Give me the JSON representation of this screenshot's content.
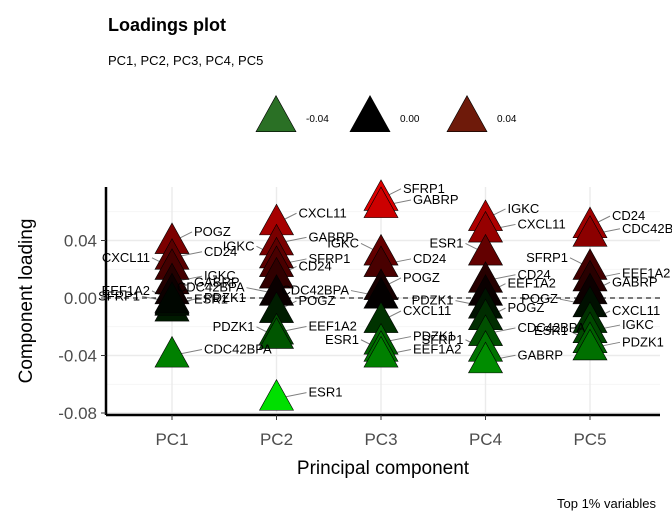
{
  "chart_data": {
    "type": "scatter",
    "title": "Loadings plot",
    "subtitle": "PC1, PC2, PC3, PC4, PC5",
    "xlabel": "Principal component",
    "ylabel": "Component loading",
    "caption": "Top 1% variables",
    "categories": [
      "PC1",
      "PC2",
      "PC3",
      "PC4",
      "PC5"
    ],
    "ylim": [
      -0.08,
      0.08
    ],
    "yticks": [
      -0.08,
      -0.04,
      0.0,
      0.04
    ],
    "ytick_labels": [
      "-0.08",
      "-0.04",
      "0.00",
      "0.04"
    ],
    "reference_line": 0.0,
    "grid": true,
    "legend_position": "top",
    "legend": [
      {
        "label": "-0.04",
        "color": "#2a7025"
      },
      {
        "label": "0.00",
        "color": "#000000"
      },
      {
        "label": "0.04",
        "color": "#6e1a0a"
      }
    ],
    "color_scale": {
      "low": "#00ff00",
      "mid": "#000000",
      "high": "#ff0000"
    },
    "series": [
      {
        "pc": "PC1",
        "points": [
          {
            "label": "POGZ",
            "y": 0.039
          },
          {
            "label": "CD24",
            "y": 0.028
          },
          {
            "label": "CXCL11",
            "y": 0.021
          },
          {
            "label": "IGKC",
            "y": 0.011
          },
          {
            "label": "GABRP",
            "y": 0.004
          },
          {
            "label": "SFRP1",
            "y": -0.003
          },
          {
            "label": "ESR1",
            "y": -0.008
          },
          {
            "label": "PDZK1",
            "y": -0.004
          },
          {
            "label": "EEF1A2",
            "y": -0.002
          },
          {
            "label": "CDC42BPA",
            "y": -0.04
          }
        ]
      },
      {
        "pc": "PC2",
        "points": [
          {
            "label": "CXCL11",
            "y": 0.052
          },
          {
            "label": "GABRP",
            "y": 0.038
          },
          {
            "label": "IGKC",
            "y": 0.029
          },
          {
            "label": "SFRP1",
            "y": 0.023
          },
          {
            "label": "CD24",
            "y": 0.015
          },
          {
            "label": "CDC42BPA",
            "y": 0.003
          },
          {
            "label": "POGZ",
            "y": -0.009
          },
          {
            "label": "EEF1A2",
            "y": -0.024
          },
          {
            "label": "PDZK1",
            "y": -0.027
          },
          {
            "label": "ESR1",
            "y": -0.07
          }
        ]
      },
      {
        "pc": "PC3",
        "points": [
          {
            "label": "SFRP1",
            "y": 0.069
          },
          {
            "label": "GABRP",
            "y": 0.064
          },
          {
            "label": "IGKC",
            "y": 0.031
          },
          {
            "label": "CD24",
            "y": 0.023
          },
          {
            "label": "POGZ",
            "y": 0.007
          },
          {
            "label": "CDC42BPA",
            "y": 0.001
          },
          {
            "label": "CXCL11",
            "y": -0.016
          },
          {
            "label": "PDZK1",
            "y": -0.031
          },
          {
            "label": "ESR1",
            "y": -0.036
          },
          {
            "label": "EEF1A2",
            "y": -0.04
          }
        ]
      },
      {
        "pc": "PC4",
        "points": [
          {
            "label": "IGKC",
            "y": 0.055
          },
          {
            "label": "CXCL11",
            "y": 0.047
          },
          {
            "label": "ESR1",
            "y": 0.031
          },
          {
            "label": "CD24",
            "y": 0.012
          },
          {
            "label": "EEF1A2",
            "y": 0.003
          },
          {
            "label": "PDZK1",
            "y": -0.006
          },
          {
            "label": "POGZ",
            "y": -0.014
          },
          {
            "label": "CDC42BPA",
            "y": -0.025
          },
          {
            "label": "SFRP1",
            "y": -0.036
          },
          {
            "label": "GABRP",
            "y": -0.044
          }
        ]
      },
      {
        "pc": "PC5",
        "points": [
          {
            "label": "CD24",
            "y": 0.05
          },
          {
            "label": "CDC42BPA",
            "y": 0.044
          },
          {
            "label": "SFRP1",
            "y": 0.021
          },
          {
            "label": "EEF1A2",
            "y": 0.013
          },
          {
            "label": "GABRP",
            "y": 0.004
          },
          {
            "label": "POGZ",
            "y": -0.005
          },
          {
            "label": "CXCL11",
            "y": -0.016
          },
          {
            "label": "IGKC",
            "y": -0.023
          },
          {
            "label": "ESR1",
            "y": -0.03
          },
          {
            "label": "PDZK1",
            "y": -0.035
          }
        ]
      }
    ]
  }
}
